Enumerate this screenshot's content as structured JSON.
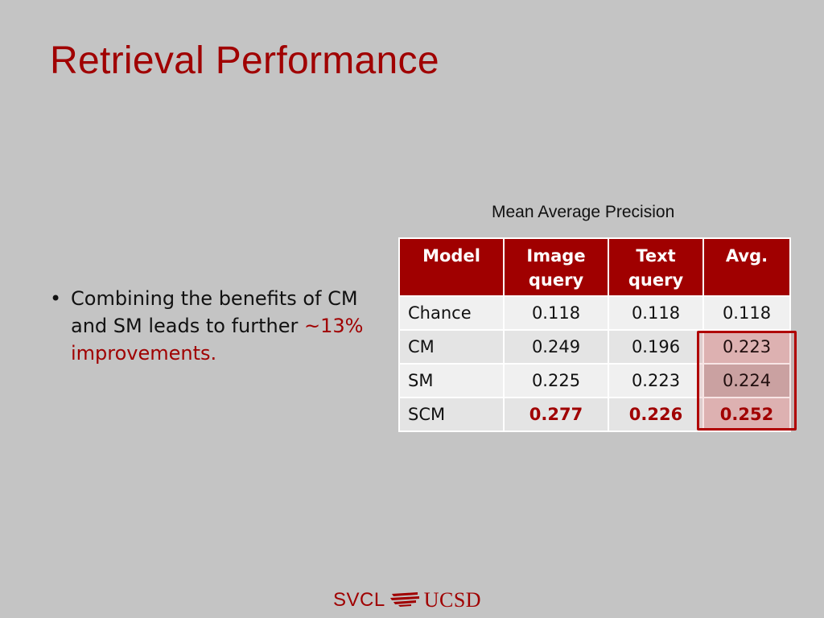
{
  "slide": {
    "title": "Retrieval Performance"
  },
  "bullet": {
    "symbol": "•",
    "text": "Combining the benefits of CM and SM leads to further ",
    "highlight": "~13% improvements."
  },
  "table": {
    "caption": "Mean Average Precision",
    "headers": {
      "model": "Model",
      "image_query": "Image query",
      "text_query": "Text query",
      "avg": "Avg."
    },
    "rows": [
      {
        "model": "Chance",
        "image": "0.118",
        "text": "0.118",
        "avg": "0.118"
      },
      {
        "model": "CM",
        "image": "0.249",
        "text": "0.196",
        "avg": "0.223"
      },
      {
        "model": "SM",
        "image": "0.225",
        "text": "0.223",
        "avg": "0.224"
      },
      {
        "model": "SCM",
        "image": "0.277",
        "text": "0.226",
        "avg": "0.252"
      }
    ],
    "best_row": "SCM"
  },
  "footer": {
    "left": "SVCL",
    "right": "UCSD",
    "logo_icon": "ucsd-logo-icon"
  },
  "colors": {
    "accent": "#a00000",
    "background": "#c4c4c4"
  }
}
